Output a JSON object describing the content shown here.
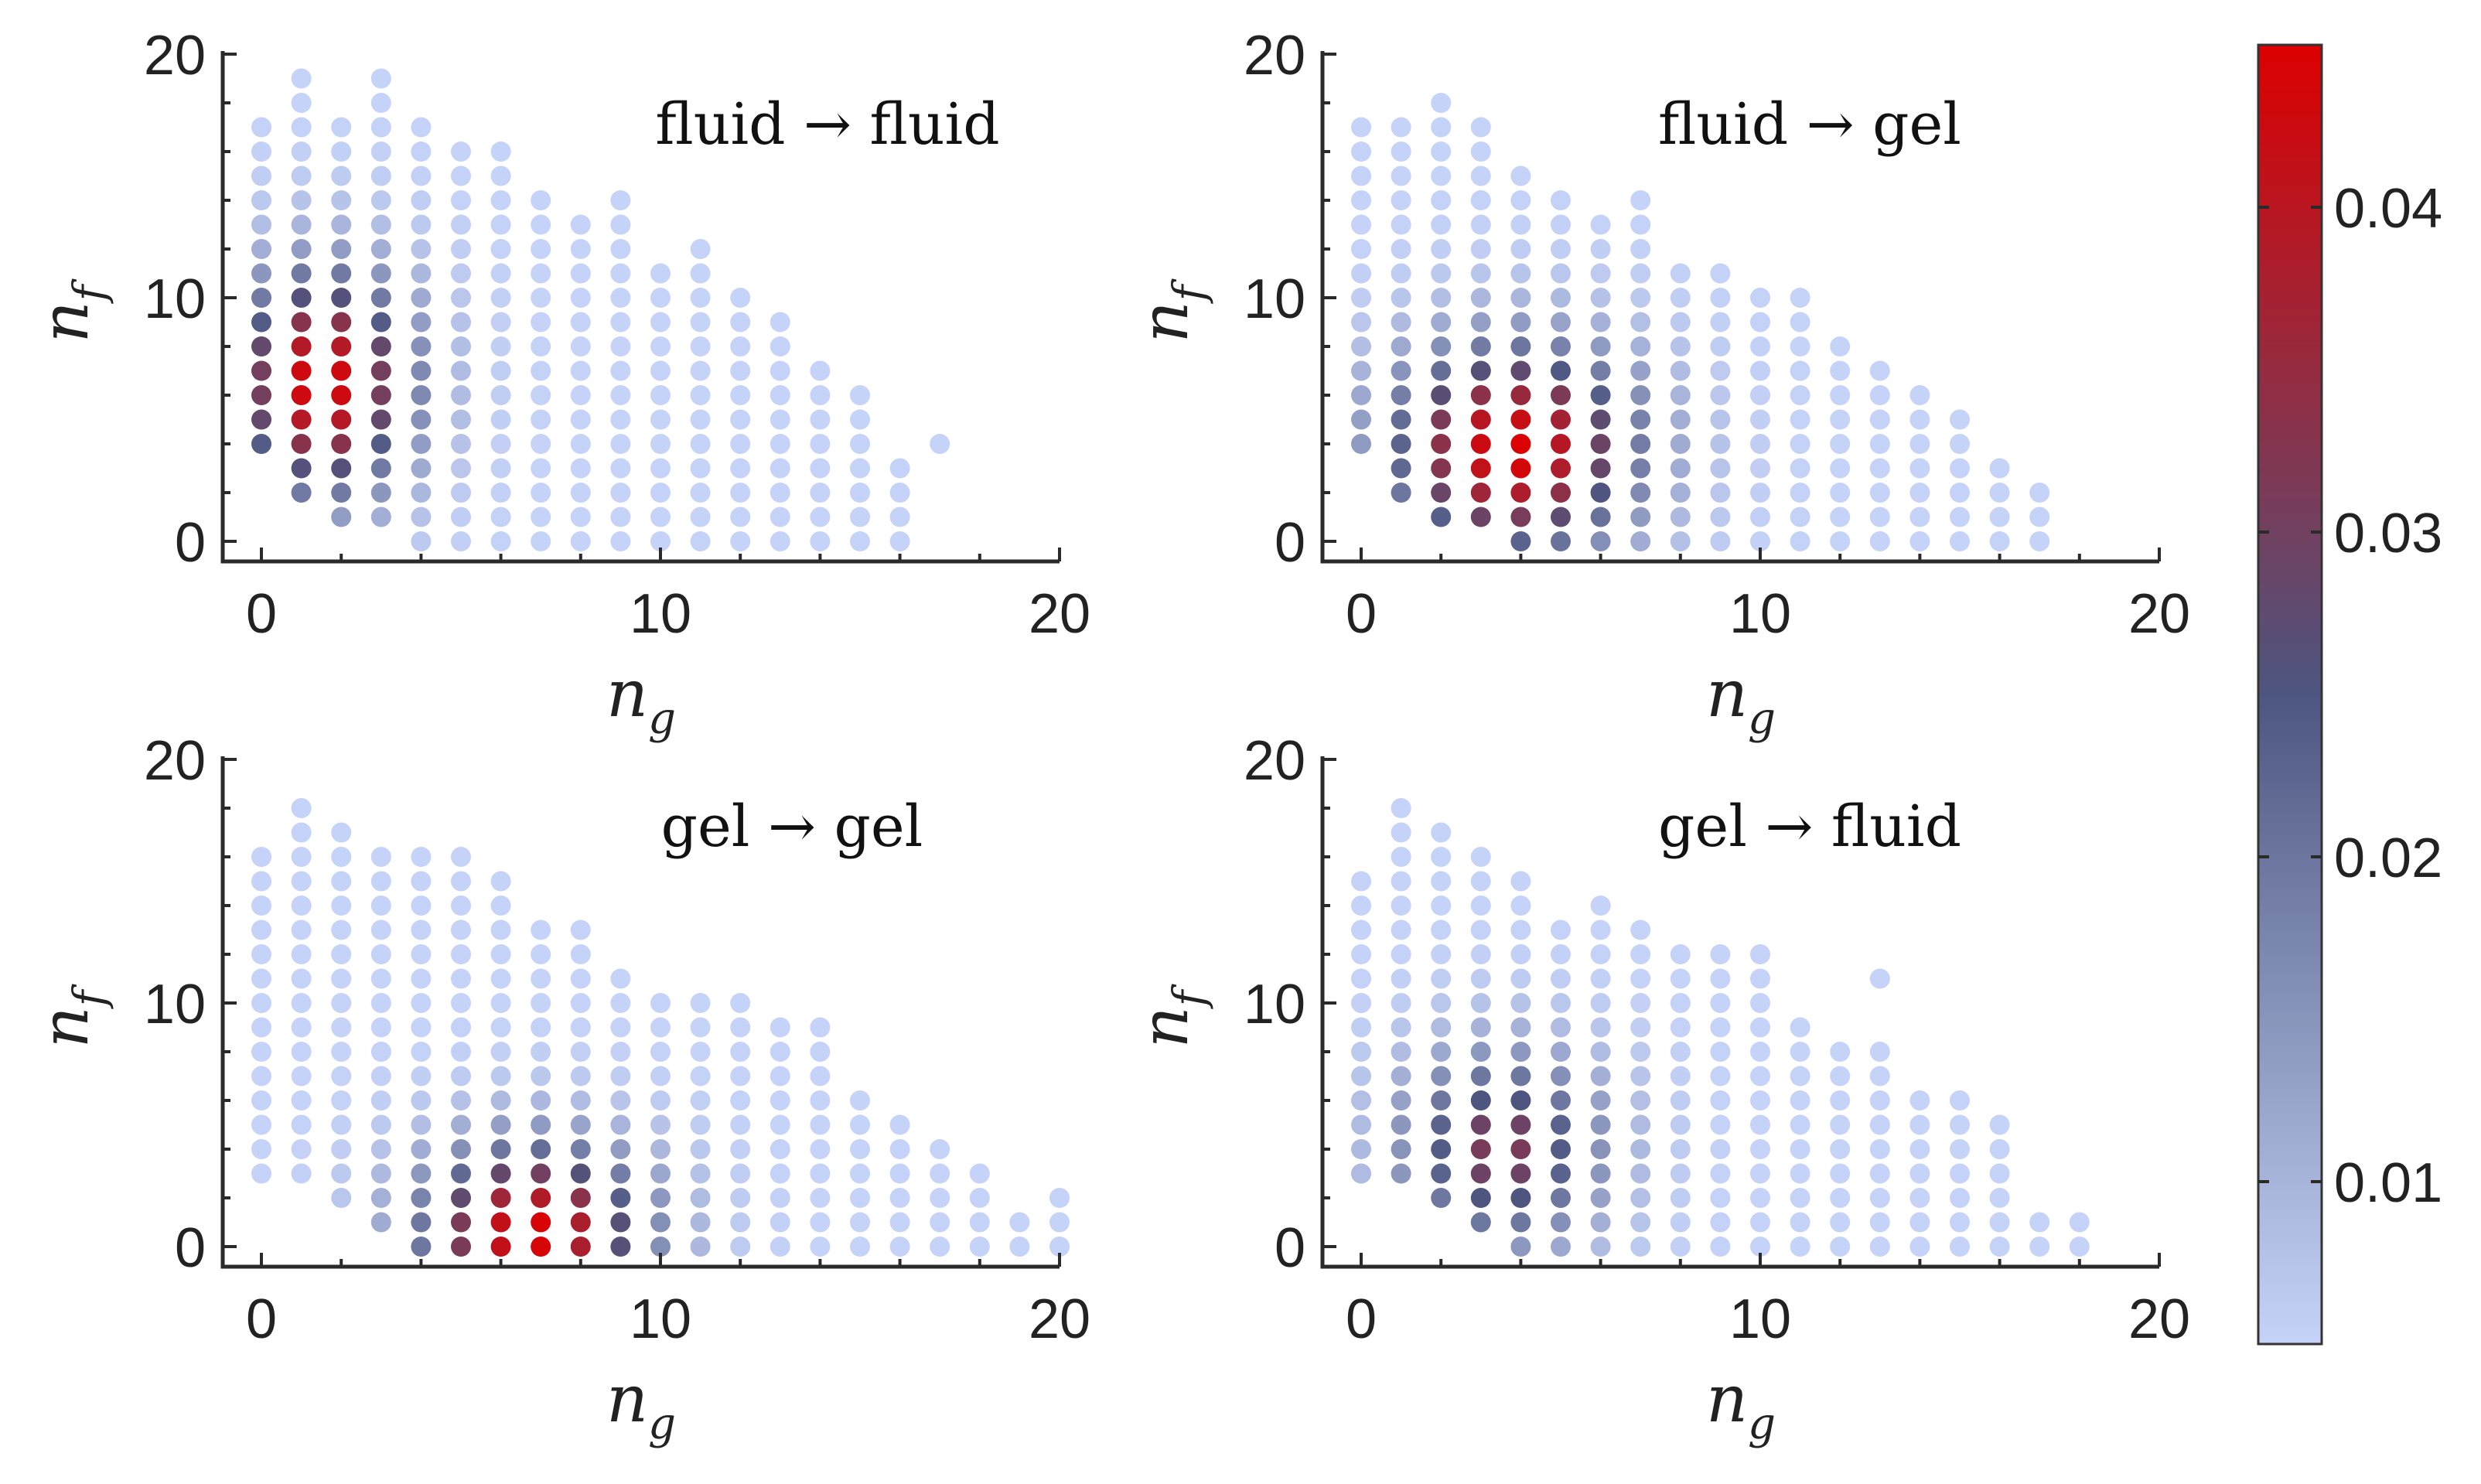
{
  "chart_data": {
    "type": "scatter",
    "x_var": "n",
    "x_sub": "g",
    "y_var": "n",
    "y_sub": "f",
    "xlim": [
      -1,
      20
    ],
    "ylim": [
      -1,
      20
    ],
    "xticks": [
      0,
      10,
      20
    ],
    "yticks": [
      0,
      10,
      20
    ],
    "colorbar": {
      "range": [
        0.005,
        0.045
      ],
      "ticks": [
        0.01,
        0.02,
        0.03,
        0.04
      ],
      "tick_labels": [
        "0.01",
        "0.02",
        "0.03",
        "0.04"
      ],
      "colors": {
        "low": "#c6d3f8",
        "mid": "#4d5680",
        "high": "#dd0000"
      }
    },
    "panels": [
      {
        "title": "fluid → fluid",
        "columns": [
          [
            0,
            4,
            17
          ],
          [
            1,
            2,
            19
          ],
          [
            2,
            1,
            17
          ],
          [
            3,
            1,
            19
          ],
          [
            4,
            0,
            17
          ],
          [
            5,
            0,
            16
          ],
          [
            6,
            0,
            16
          ],
          [
            7,
            0,
            14
          ],
          [
            8,
            0,
            13
          ],
          [
            9,
            0,
            14
          ],
          [
            10,
            0,
            11
          ],
          [
            11,
            0,
            12
          ],
          [
            12,
            0,
            10
          ],
          [
            13,
            0,
            9
          ],
          [
            14,
            0,
            7
          ],
          [
            15,
            0,
            6
          ],
          [
            16,
            0,
            3
          ],
          [
            17,
            4,
            4
          ]
        ],
        "peak": {
          "ng": 1.5,
          "nf": 6.5,
          "value": 0.045
        },
        "spread": {
          "sx": 1.6,
          "sy": 3.2
        }
      },
      {
        "title": "fluid → gel",
        "columns": [
          [
            0,
            4,
            17
          ],
          [
            1,
            2,
            17
          ],
          [
            2,
            1,
            18
          ],
          [
            3,
            1,
            17
          ],
          [
            4,
            0,
            15
          ],
          [
            5,
            0,
            14
          ],
          [
            6,
            0,
            13
          ],
          [
            7,
            0,
            14
          ],
          [
            8,
            0,
            11
          ],
          [
            9,
            0,
            11
          ],
          [
            10,
            0,
            10
          ],
          [
            11,
            0,
            10
          ],
          [
            12,
            0,
            8
          ],
          [
            13,
            0,
            7
          ],
          [
            14,
            0,
            6
          ],
          [
            15,
            0,
            5
          ],
          [
            16,
            0,
            3
          ],
          [
            17,
            0,
            2
          ]
        ],
        "peak": {
          "ng": 3.8,
          "nf": 3.8,
          "value": 0.045
        },
        "spread": {
          "sx": 2.2,
          "sy": 3.0
        }
      },
      {
        "title": "gel → gel",
        "columns": [
          [
            0,
            3,
            16
          ],
          [
            1,
            3,
            18
          ],
          [
            2,
            2,
            17
          ],
          [
            3,
            1,
            16
          ],
          [
            4,
            0,
            16
          ],
          [
            5,
            0,
            16
          ],
          [
            6,
            0,
            15
          ],
          [
            7,
            0,
            13
          ],
          [
            8,
            0,
            13
          ],
          [
            9,
            0,
            11
          ],
          [
            10,
            0,
            10
          ],
          [
            11,
            0,
            10
          ],
          [
            12,
            0,
            10
          ],
          [
            13,
            0,
            9
          ],
          [
            14,
            0,
            9
          ],
          [
            15,
            0,
            6
          ],
          [
            16,
            0,
            5
          ],
          [
            17,
            0,
            4
          ],
          [
            18,
            0,
            3
          ],
          [
            19,
            0,
            1
          ],
          [
            20,
            0,
            2
          ]
        ],
        "peak": {
          "ng": 6.8,
          "nf": 0.5,
          "value": 0.045
        },
        "spread": {
          "sx": 2.0,
          "sy": 2.6
        }
      },
      {
        "title": "gel → fluid",
        "columns": [
          [
            0,
            3,
            15
          ],
          [
            1,
            3,
            18
          ],
          [
            2,
            2,
            17
          ],
          [
            3,
            1,
            16
          ],
          [
            4,
            0,
            15
          ],
          [
            5,
            0,
            13
          ],
          [
            6,
            0,
            14
          ],
          [
            7,
            0,
            13
          ],
          [
            8,
            0,
            12
          ],
          [
            9,
            0,
            12
          ],
          [
            10,
            0,
            12
          ],
          [
            11,
            0,
            9
          ],
          [
            12,
            0,
            8
          ],
          [
            13,
            0,
            8
          ],
          [
            14,
            0,
            6
          ],
          [
            15,
            0,
            6
          ],
          [
            16,
            0,
            5
          ],
          [
            17,
            0,
            1
          ],
          [
            18,
            0,
            1
          ]
        ],
        "extra_points": [
          [
            13,
            11
          ]
        ],
        "peak": {
          "ng": 3.5,
          "nf": 4.0,
          "value": 0.032
        },
        "spread": {
          "sx": 1.8,
          "sy": 2.8
        }
      }
    ]
  }
}
